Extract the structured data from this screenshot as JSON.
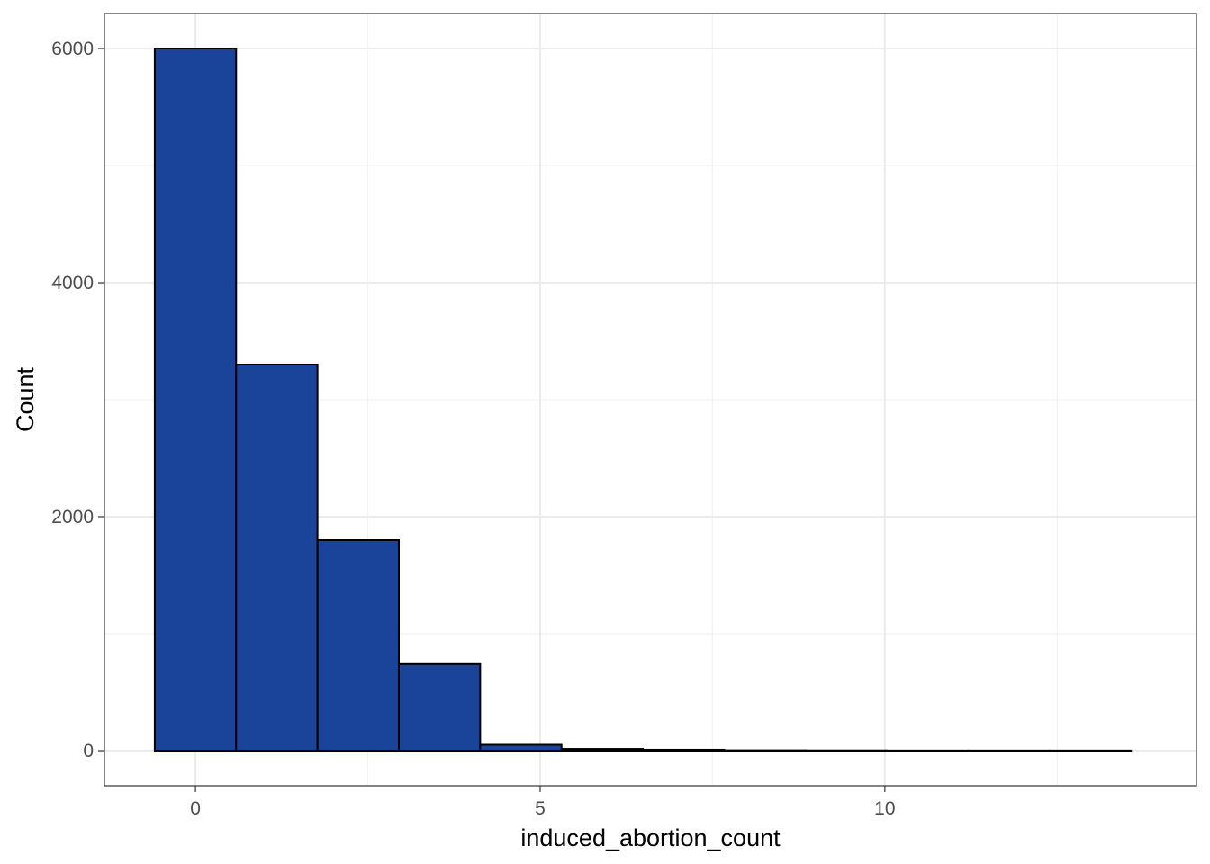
{
  "chart_data": {
    "type": "bar",
    "title": "",
    "xlabel": "induced_abortion_count",
    "ylabel": "Count",
    "xlim": [
      -1.32,
      14.52
    ],
    "ylim": [
      -300,
      6300
    ],
    "x_ticks": [
      0,
      5,
      10
    ],
    "x_tick_labels": [
      "0",
      "5",
      "10"
    ],
    "y_ticks": [
      0,
      2000,
      4000,
      6000
    ],
    "y_tick_labels": [
      "0",
      "2000",
      "4000",
      "6000"
    ],
    "x_minor_gridlines": [
      -2.5,
      2.5,
      7.5,
      12.5
    ],
    "y_minor_gridlines": [
      1000,
      3000,
      5000
    ],
    "grid": true,
    "colors": {
      "bar_fill": "#1a4499",
      "bar_outline": "#000000",
      "grid_major": "#ebebeb",
      "grid_minor": "#f2f2f2",
      "panel_border": "#333333"
    },
    "bins": [
      {
        "x_start": -0.59,
        "x_end": 0.59,
        "count": 6000
      },
      {
        "x_start": 0.59,
        "x_end": 1.77,
        "count": 3300
      },
      {
        "x_start": 1.77,
        "x_end": 2.95,
        "count": 1800
      },
      {
        "x_start": 2.95,
        "x_end": 4.13,
        "count": 740
      },
      {
        "x_start": 4.13,
        "x_end": 5.31,
        "count": 50
      },
      {
        "x_start": 5.31,
        "x_end": 6.49,
        "count": 15
      },
      {
        "x_start": 6.49,
        "x_end": 7.67,
        "count": 8
      },
      {
        "x_start": 7.67,
        "x_end": 8.85,
        "count": 3
      },
      {
        "x_start": 8.85,
        "x_end": 10.03,
        "count": 2
      },
      {
        "x_start": 10.03,
        "x_end": 11.21,
        "count": 1
      },
      {
        "x_start": 11.21,
        "x_end": 12.39,
        "count": 1
      },
      {
        "x_start": 12.39,
        "x_end": 13.57,
        "count": 1
      }
    ]
  }
}
